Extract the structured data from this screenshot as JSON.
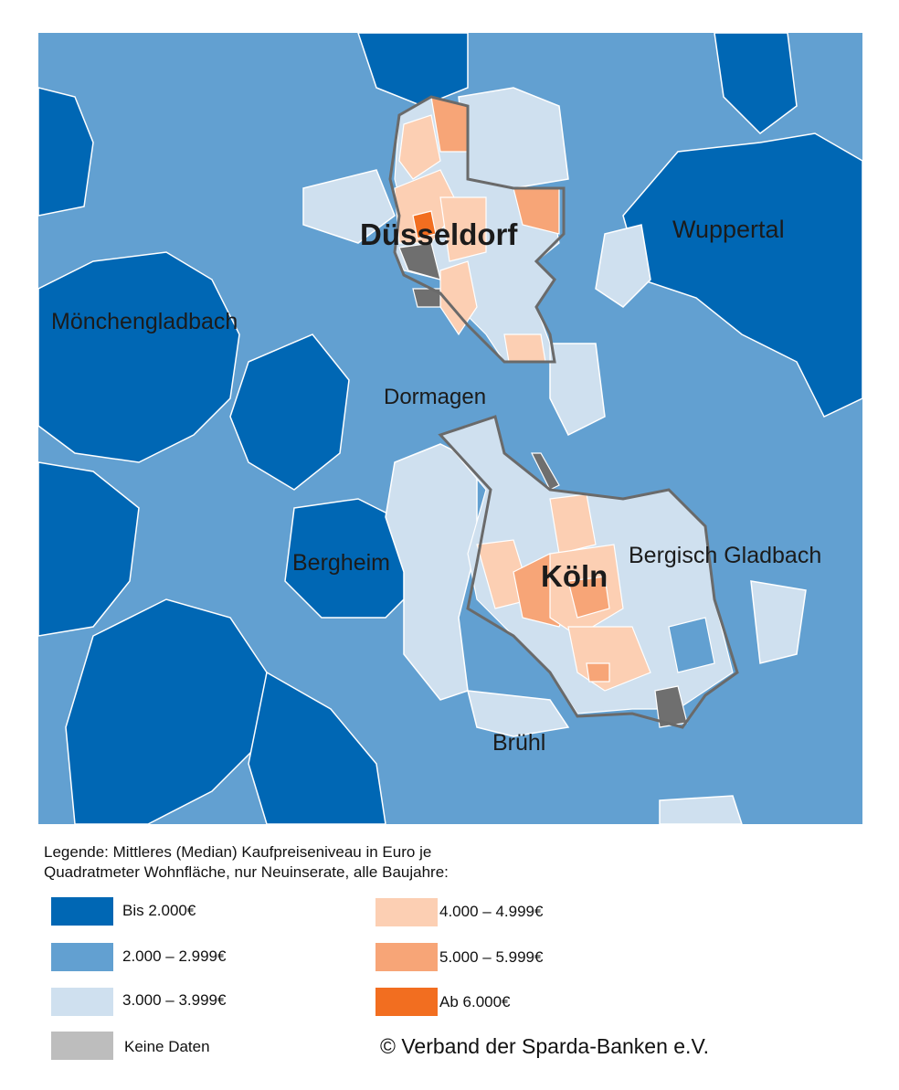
{
  "colors": {
    "bis_2000": "#0067b4",
    "c2000_2999": "#62a0d1",
    "c3000_3999": "#cfe0ef",
    "c4000_4999": "#fccfb3",
    "c5000_5999": "#f7a577",
    "ab_6000": "#f26e20",
    "keine_daten": "#bdbdbd",
    "map_no_data": "#6f6f6f",
    "outline": "#6a6a6a"
  },
  "map": {
    "cities": {
      "duesseldorf": "Düsseldorf",
      "wuppertal": "Wuppertal",
      "moenchengladbach": "Mönchengladbach",
      "dormagen": "Dormagen",
      "bergheim": "Bergheim",
      "koeln": "Köln",
      "bergisch_gladbach": "Bergisch Gladbach",
      "bruehl": "Brühl"
    }
  },
  "legend": {
    "title_line1": "Legende: Mittleres (Median) Kaufpreiseniveau in Euro je",
    "title_line2": "Quadratmeter Wohnfläche, nur Neuinserate, alle Baujahre:",
    "items": [
      {
        "label": "Bis 2.000€"
      },
      {
        "label": "2.000 – 2.999€"
      },
      {
        "label": "3.000 – 3.999€"
      },
      {
        "label": "Keine Daten"
      },
      {
        "label": "4.000 – 4.999€"
      },
      {
        "label": "5.000 – 5.999€"
      },
      {
        "label": "Ab 6.000€"
      }
    ]
  },
  "copyright": "© Verband der Sparda-Banken e.V."
}
